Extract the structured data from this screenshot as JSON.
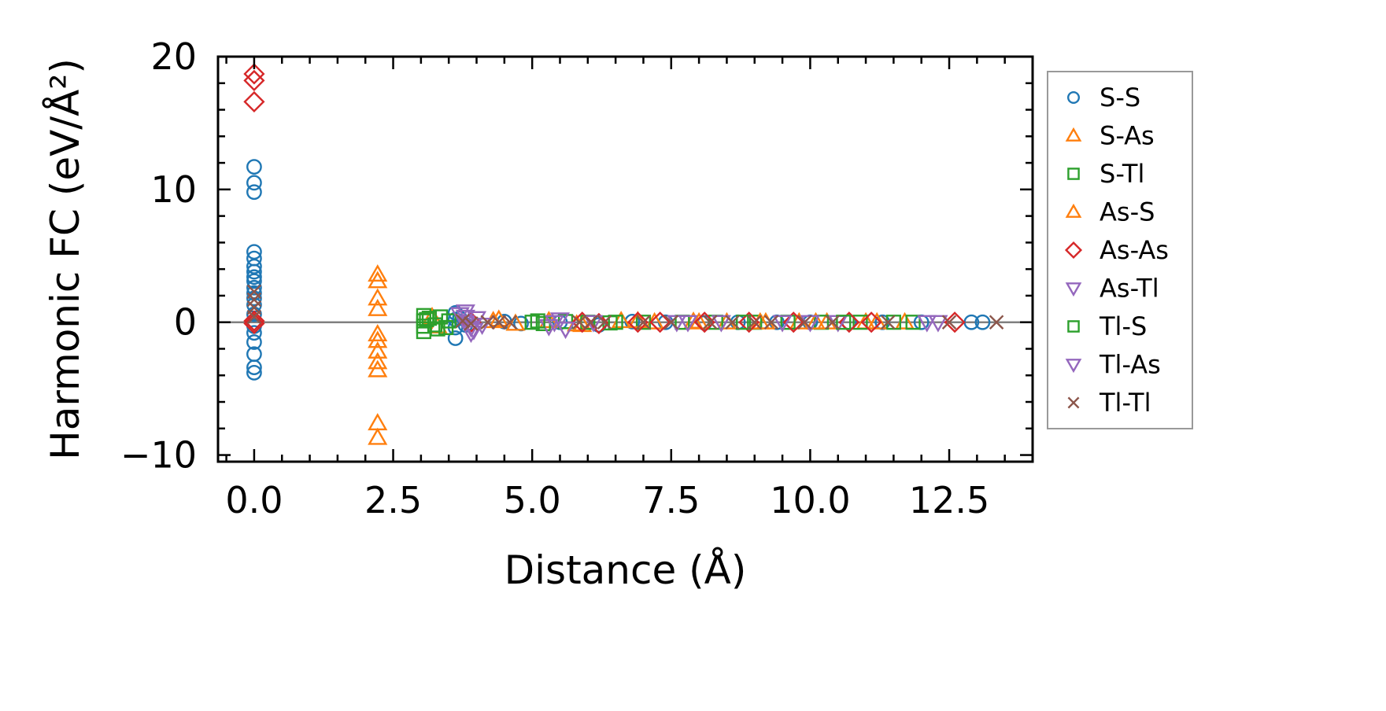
{
  "chart_data": {
    "type": "scatter",
    "title": "",
    "xlabel": "Distance (Å)",
    "ylabel": "Harmonic FC (eV/Å²)",
    "xlim": [
      -0.65,
      14.0
    ],
    "ylim": [
      -10.5,
      20.0
    ],
    "xticks": [
      0.0,
      2.5,
      5.0,
      7.5,
      10.0,
      12.5
    ],
    "xtick_labels": [
      "0.0",
      "2.5",
      "5.0",
      "7.5",
      "10.0",
      "12.5"
    ],
    "yticks": [
      -10,
      0,
      10,
      20
    ],
    "ytick_labels": [
      "−10",
      "0",
      "10",
      "20"
    ],
    "x_minor_step": 0.5,
    "y_minor_step": 2,
    "grid": false,
    "zero_line": true,
    "legend_position": "outside-right",
    "series": [
      {
        "name": "S-S",
        "marker": "circle",
        "color": "#1f77b4",
        "points": [
          [
            0,
            11.7
          ],
          [
            0,
            10.5
          ],
          [
            0,
            9.8
          ],
          [
            0,
            5.3
          ],
          [
            0,
            4.8
          ],
          [
            0,
            4.2
          ],
          [
            0,
            3.8
          ],
          [
            0,
            3.4
          ],
          [
            0,
            3.1
          ],
          [
            0,
            2.6
          ],
          [
            0,
            2.2
          ],
          [
            0,
            1.8
          ],
          [
            0,
            1.3
          ],
          [
            0,
            0.6
          ],
          [
            0,
            -0.3
          ],
          [
            0,
            -0.8
          ],
          [
            0,
            -1.5
          ],
          [
            0,
            -2.4
          ],
          [
            0,
            -3.4
          ],
          [
            0,
            -3.8
          ],
          [
            3.62,
            0.7
          ],
          [
            3.62,
            0.2
          ],
          [
            3.62,
            -0.4
          ],
          [
            3.62,
            -1.2
          ],
          [
            3.7,
            0.3
          ],
          [
            3.8,
            -0.2
          ],
          [
            4.5,
            0.05
          ],
          [
            4.8,
            -0.1
          ],
          [
            5.5,
            0.0
          ],
          [
            6.2,
            -0.2
          ],
          [
            6.8,
            0.05
          ],
          [
            7.4,
            0.0
          ],
          [
            8.1,
            -0.05
          ],
          [
            8.7,
            0.0
          ],
          [
            9.4,
            0.0
          ],
          [
            10.0,
            0.0
          ],
          [
            10.7,
            0.0
          ],
          [
            11.3,
            0.0
          ],
          [
            12.0,
            0.0
          ],
          [
            12.9,
            0.0
          ],
          [
            13.1,
            0.0
          ]
        ]
      },
      {
        "name": "S-As",
        "marker": "triangle-up",
        "color": "#ff7f0e",
        "points": [
          [
            2.22,
            3.6
          ],
          [
            2.22,
            3.1
          ],
          [
            2.22,
            1.8
          ],
          [
            2.22,
            1.0
          ],
          [
            2.22,
            -0.9
          ],
          [
            2.22,
            -1.4
          ],
          [
            2.22,
            -2.2
          ],
          [
            2.22,
            -3.0
          ],
          [
            2.22,
            -3.6
          ],
          [
            2.22,
            -7.6
          ],
          [
            2.22,
            -8.7
          ],
          [
            3.2,
            0.4
          ],
          [
            3.3,
            -0.3
          ],
          [
            4.3,
            0.1
          ],
          [
            4.7,
            -0.1
          ],
          [
            5.3,
            0.1
          ],
          [
            5.9,
            -0.2
          ],
          [
            6.6,
            0.1
          ],
          [
            7.2,
            0.0
          ],
          [
            7.9,
            0.05
          ],
          [
            8.5,
            0.0
          ],
          [
            9.2,
            0.0
          ],
          [
            9.8,
            0.0
          ],
          [
            10.3,
            0.0
          ],
          [
            11.0,
            0.0
          ],
          [
            11.7,
            0.0
          ]
        ]
      },
      {
        "name": "S-Tl",
        "marker": "square",
        "color": "#2ca02c",
        "points": [
          [
            3.05,
            0.5
          ],
          [
            3.05,
            0.1
          ],
          [
            3.05,
            -0.3
          ],
          [
            3.05,
            -0.7
          ],
          [
            3.15,
            0.3
          ],
          [
            3.25,
            -0.2
          ],
          [
            3.35,
            0.4
          ],
          [
            3.45,
            -0.4
          ],
          [
            3.5,
            0.1
          ],
          [
            5.0,
            0.0
          ],
          [
            5.2,
            -0.1
          ],
          [
            5.6,
            0.05
          ],
          [
            6.0,
            0.0
          ],
          [
            6.4,
            -0.05
          ],
          [
            7.0,
            0.0
          ],
          [
            7.7,
            0.0
          ],
          [
            8.3,
            0.0
          ],
          [
            9.0,
            0.0
          ],
          [
            9.6,
            0.0
          ],
          [
            10.2,
            0.0
          ],
          [
            10.9,
            0.0
          ],
          [
            11.5,
            0.0
          ],
          [
            11.85,
            0.0
          ]
        ]
      },
      {
        "name": "As-S",
        "marker": "triangle-up",
        "color": "#ff7f0e",
        "points": [
          [
            4.4,
            0.2
          ],
          [
            5.8,
            -0.15
          ],
          [
            6.9,
            0.1
          ],
          [
            8.0,
            0.0
          ],
          [
            9.1,
            0.0
          ],
          [
            10.1,
            0.0
          ],
          [
            11.2,
            0.0
          ]
        ]
      },
      {
        "name": "As-As",
        "marker": "diamond",
        "color": "#d62728",
        "points": [
          [
            0,
            18.7
          ],
          [
            0,
            18.2
          ],
          [
            0,
            16.6
          ],
          [
            0,
            0.1
          ],
          [
            0,
            -0.1
          ],
          [
            3.9,
            0.0
          ],
          [
            5.9,
            0.0
          ],
          [
            6.2,
            -0.1
          ],
          [
            6.9,
            0.0
          ],
          [
            7.3,
            0.0
          ],
          [
            8.1,
            0.0
          ],
          [
            8.9,
            0.0
          ],
          [
            9.7,
            0.0
          ],
          [
            10.7,
            0.0
          ],
          [
            11.1,
            0.0
          ],
          [
            12.6,
            0.0
          ]
        ]
      },
      {
        "name": "As-Tl",
        "marker": "triangle-down",
        "color": "#9467bd",
        "points": [
          [
            3.8,
            0.8
          ],
          [
            3.8,
            0.4
          ],
          [
            3.8,
            0.0
          ],
          [
            3.9,
            -0.4
          ],
          [
            3.9,
            -0.8
          ],
          [
            4.0,
            0.3
          ],
          [
            4.1,
            -0.2
          ],
          [
            5.3,
            -0.3
          ],
          [
            5.5,
            0.2
          ],
          [
            5.6,
            -0.5
          ],
          [
            6.1,
            0.0
          ],
          [
            7.6,
            0.0
          ],
          [
            8.4,
            0.0
          ],
          [
            9.5,
            0.0
          ],
          [
            10.5,
            0.0
          ],
          [
            12.3,
            0.0
          ]
        ]
      },
      {
        "name": "Tl-S",
        "marker": "square",
        "color": "#2ca02c",
        "points": [
          [
            3.1,
            0.2
          ],
          [
            3.3,
            -0.5
          ],
          [
            5.1,
            0.1
          ],
          [
            6.5,
            0.0
          ],
          [
            8.8,
            0.0
          ],
          [
            10.6,
            0.0
          ]
        ]
      },
      {
        "name": "Tl-As",
        "marker": "triangle-down",
        "color": "#9467bd",
        "points": [
          [
            3.7,
            0.6
          ],
          [
            3.95,
            -0.6
          ],
          [
            5.4,
            0.0
          ],
          [
            7.8,
            0.0
          ],
          [
            10.0,
            0.0
          ],
          [
            12.1,
            0.0
          ]
        ]
      },
      {
        "name": "Tl-Tl",
        "marker": "x",
        "color": "#8c564b",
        "points": [
          [
            0,
            2.3
          ],
          [
            0,
            1.7
          ],
          [
            0,
            1.1
          ],
          [
            0,
            0.4
          ],
          [
            3.75,
            0.1
          ],
          [
            3.9,
            -0.1
          ],
          [
            4.2,
            0.0
          ],
          [
            4.4,
            0.0
          ],
          [
            4.6,
            0.0
          ],
          [
            5.85,
            0.0
          ],
          [
            6.05,
            0.0
          ],
          [
            6.3,
            0.0
          ],
          [
            7.0,
            0.0
          ],
          [
            7.5,
            0.0
          ],
          [
            8.2,
            0.0
          ],
          [
            8.6,
            0.0
          ],
          [
            9.0,
            0.0
          ],
          [
            9.3,
            0.0
          ],
          [
            9.9,
            0.0
          ],
          [
            10.4,
            0.0
          ],
          [
            11.4,
            0.0
          ],
          [
            12.5,
            0.0
          ],
          [
            13.35,
            0.0
          ]
        ]
      }
    ]
  }
}
